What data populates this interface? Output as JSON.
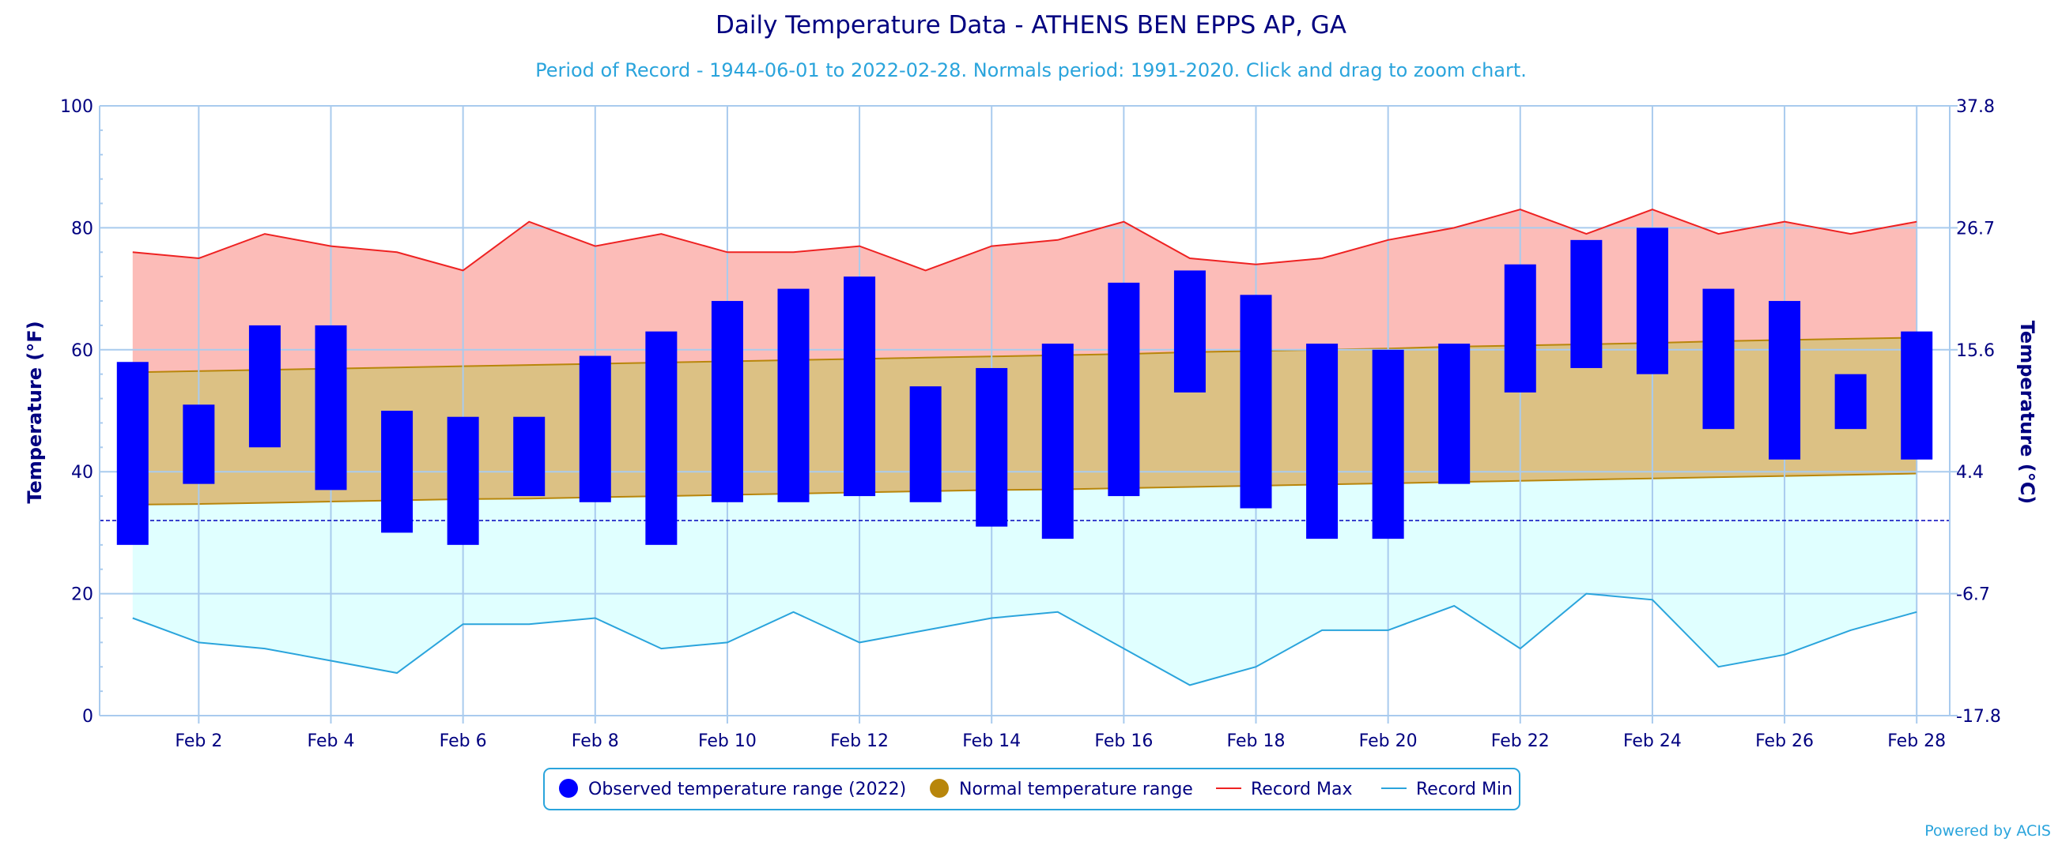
{
  "chart_data": {
    "type": "bar",
    "title": "Daily Temperature Data - ATHENS BEN EPPS AP, GA",
    "subtitle": "Period of Record - 1944-06-01 to 2022-02-28. Normals period: 1991-2020. Click and drag to zoom chart.",
    "ylabel": "Temperature (°F)",
    "y2label": "Temperature (°C)",
    "ylim": [
      0,
      100
    ],
    "y_ticks": [
      "0",
      "20",
      "40",
      "60",
      "80",
      "100"
    ],
    "y2_ticks": [
      "-17.8",
      "-6.7",
      "4.4",
      "15.6",
      "26.7",
      "37.8"
    ],
    "x_ticks": [
      "Feb 2",
      "Feb 4",
      "Feb 6",
      "Feb 8",
      "Feb 10",
      "Feb 12",
      "Feb 14",
      "Feb 16",
      "Feb 18",
      "Feb 20",
      "Feb 22",
      "Feb 24",
      "Feb 26",
      "Feb 28"
    ],
    "days": [
      1,
      2,
      3,
      4,
      5,
      6,
      7,
      8,
      9,
      10,
      11,
      12,
      13,
      14,
      15,
      16,
      17,
      18,
      19,
      20,
      21,
      22,
      23,
      24,
      25,
      26,
      27,
      28
    ],
    "freezing_line": 32,
    "grid": true,
    "legend_position": "bottom",
    "series": [
      {
        "name": "Observed temperature range (2022)",
        "color": "#0000ff",
        "low": [
          28,
          38,
          44,
          37,
          30,
          28,
          36,
          35,
          28,
          35,
          35,
          36,
          35,
          31,
          29,
          36,
          53,
          34,
          29,
          29,
          38,
          53,
          57,
          56,
          47,
          42,
          47,
          42
        ],
        "high": [
          58,
          51,
          64,
          64,
          50,
          49,
          49,
          59,
          63,
          68,
          70,
          72,
          54,
          57,
          61,
          71,
          73,
          69,
          61,
          60,
          61,
          74,
          78,
          80,
          70,
          68,
          56,
          63
        ]
      },
      {
        "name": "Normal temperature range",
        "color": "#b8860b",
        "low": [
          34.6,
          34.7,
          34.9,
          35.1,
          35.3,
          35.5,
          35.6,
          35.8,
          36.0,
          36.2,
          36.4,
          36.6,
          36.8,
          37.0,
          37.1,
          37.3,
          37.5,
          37.7,
          37.9,
          38.1,
          38.3,
          38.5,
          38.7,
          38.9,
          39.1,
          39.3,
          39.5,
          39.7
        ],
        "high": [
          56.3,
          56.5,
          56.7,
          56.9,
          57.1,
          57.3,
          57.5,
          57.7,
          57.9,
          58.1,
          58.3,
          58.5,
          58.7,
          58.9,
          59.1,
          59.3,
          59.6,
          59.8,
          60.0,
          60.2,
          60.5,
          60.7,
          60.9,
          61.1,
          61.4,
          61.6,
          61.8,
          62.0
        ]
      },
      {
        "name": "Record Max",
        "color": "#ee2222",
        "fill": "#fcbcb8",
        "values": [
          76,
          75,
          79,
          77,
          76,
          73,
          81,
          77,
          79,
          76,
          76,
          77,
          73,
          77,
          78,
          81,
          75,
          74,
          75,
          78,
          80,
          83,
          79,
          83,
          79,
          81,
          79,
          81
        ]
      },
      {
        "name": "Record Min",
        "color": "#2aa4dc",
        "fill": "#e0ffff",
        "values": [
          16,
          12,
          11,
          9,
          7,
          15,
          15,
          16,
          11,
          12,
          17,
          12,
          14,
          16,
          17,
          11,
          5,
          8,
          14,
          14,
          18,
          11,
          20,
          19,
          8,
          10,
          14,
          17
        ]
      }
    ]
  },
  "credit": "Powered by ACIS"
}
